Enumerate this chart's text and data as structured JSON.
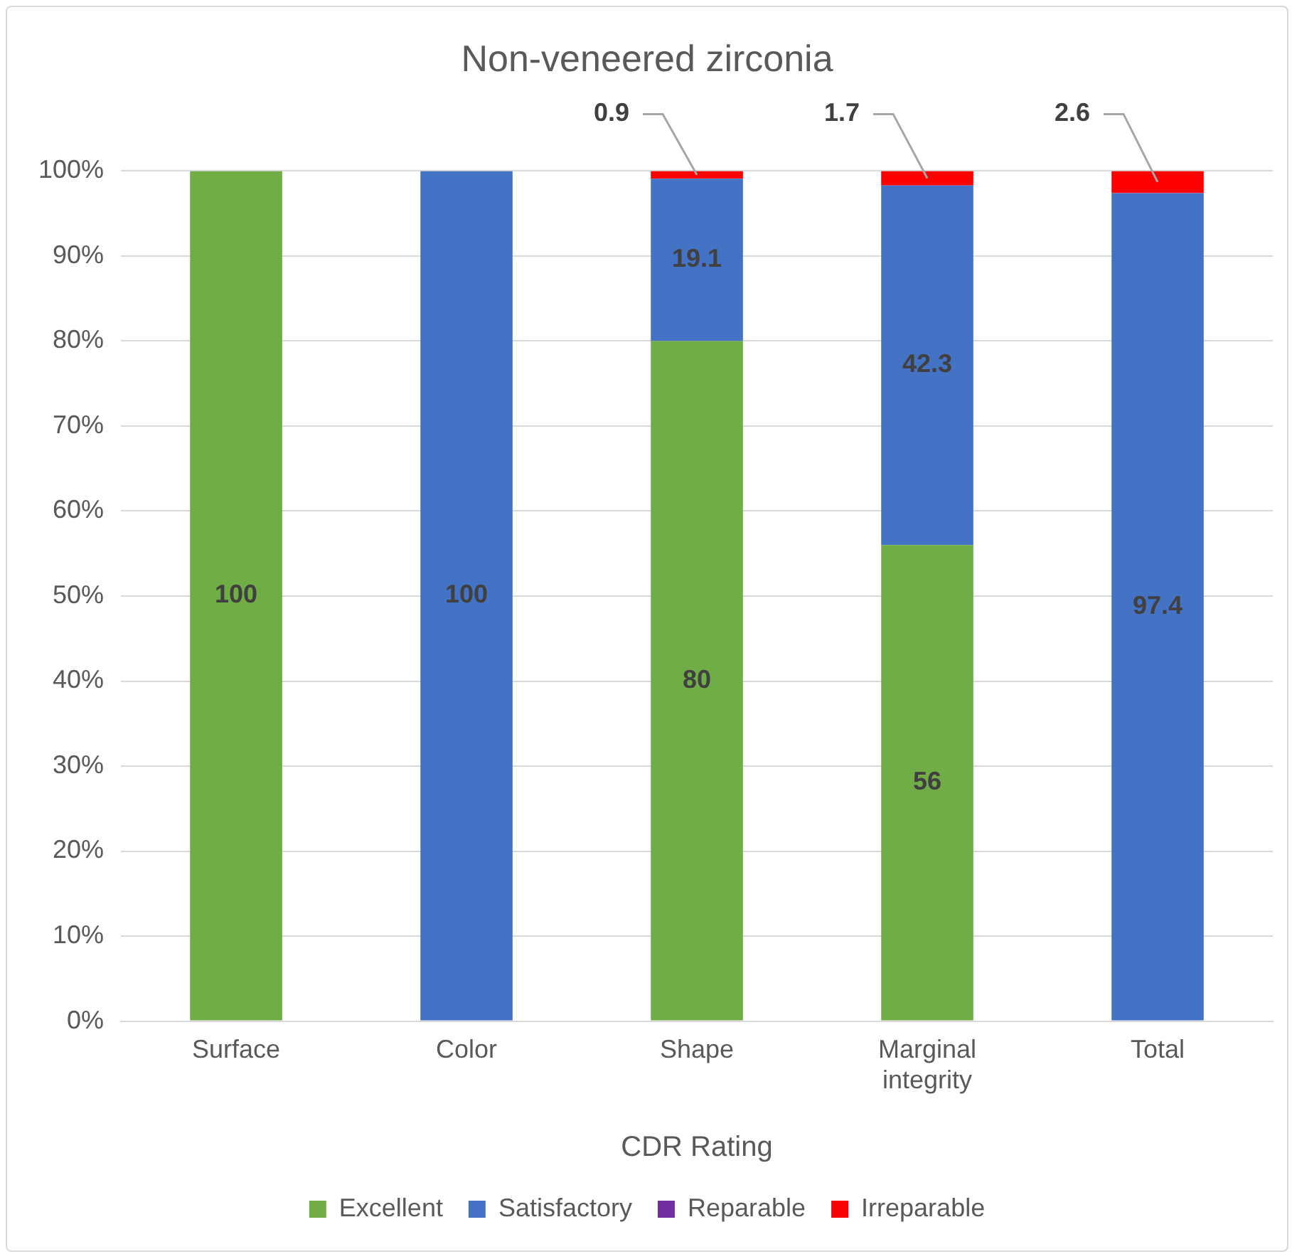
{
  "chart_data": {
    "type": "bar",
    "title": "Non-veneered zirconia",
    "xlabel": "CDR Rating",
    "stacked": true,
    "categories": [
      "Surface",
      "Color",
      "Shape",
      "Marginal integrity",
      "Total"
    ],
    "series": [
      {
        "name": "Excellent",
        "color": "#70ad47",
        "values": [
          100,
          null,
          80,
          56,
          null
        ]
      },
      {
        "name": "Satisfactory",
        "color": "#4472c4",
        "values": [
          null,
          100,
          19.1,
          42.3,
          97.4
        ]
      },
      {
        "name": "Reparable",
        "color": "#7030a0",
        "values": [
          null,
          null,
          null,
          null,
          null
        ]
      },
      {
        "name": "Irreparable",
        "color": "#ff0000",
        "values": [
          null,
          null,
          0.9,
          1.7,
          2.6
        ]
      }
    ],
    "ylim": [
      0,
      100
    ],
    "yticks": [
      {
        "value": 0,
        "label": "0%"
      },
      {
        "value": 10,
        "label": "10%"
      },
      {
        "value": 20,
        "label": "20%"
      },
      {
        "value": 30,
        "label": "30%"
      },
      {
        "value": 40,
        "label": "40%"
      },
      {
        "value": 50,
        "label": "50%"
      },
      {
        "value": 60,
        "label": "60%"
      },
      {
        "value": 70,
        "label": "70%"
      },
      {
        "value": 80,
        "label": "80%"
      },
      {
        "value": 90,
        "label": "90%"
      },
      {
        "value": 100,
        "label": "100%"
      }
    ],
    "grid": "y",
    "legend": "bottom",
    "data_labels": true
  }
}
